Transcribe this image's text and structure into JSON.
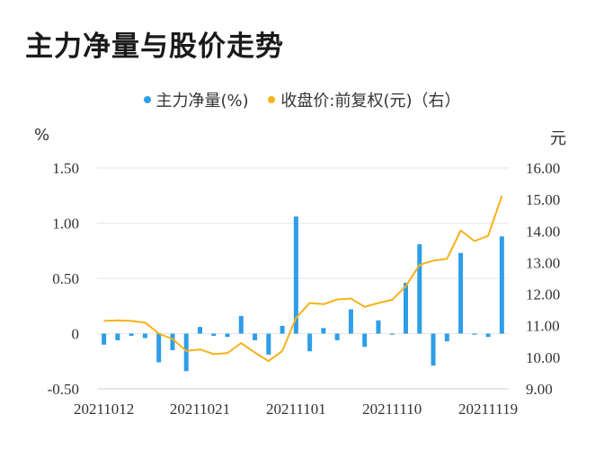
{
  "title": "主力净量与股价走势",
  "chart_data": {
    "type": "bar+line",
    "legend_position": "top",
    "grid": true,
    "left_unit": "%",
    "right_unit": "元",
    "y_left": {
      "min": -0.5,
      "max": 1.5,
      "ticks": [
        "-0.50",
        "0",
        "0.50",
        "1.00",
        "1.50"
      ]
    },
    "y_right": {
      "min": 9.0,
      "max": 16.0,
      "ticks": [
        "9.00",
        "10.00",
        "11.00",
        "12.00",
        "13.00",
        "14.00",
        "15.00",
        "16.00"
      ]
    },
    "x_tick_labels": [
      {
        "index": 0,
        "label": "20211012"
      },
      {
        "index": 7,
        "label": "20211021"
      },
      {
        "index": 14,
        "label": "20211101"
      },
      {
        "index": 21,
        "label": "20211110"
      },
      {
        "index": 28,
        "label": "20211119"
      }
    ],
    "series": [
      {
        "name": "主力净量(%)",
        "type": "bar",
        "color": "#2e9ee8",
        "values": [
          -0.1,
          -0.06,
          -0.02,
          -0.04,
          -0.26,
          -0.15,
          -0.34,
          0.06,
          -0.02,
          -0.03,
          0.16,
          -0.06,
          -0.19,
          0.07,
          1.06,
          -0.16,
          0.05,
          -0.06,
          0.22,
          -0.12,
          0.12,
          -0.01,
          0.46,
          0.81,
          -0.29,
          -0.07,
          0.73,
          -0.01,
          -0.03,
          0.88
        ]
      },
      {
        "name": "收盘价:前复权(元)（右）",
        "type": "line",
        "color": "#f5b21b",
        "values": [
          11.15,
          11.17,
          11.15,
          11.1,
          10.75,
          10.58,
          10.2,
          10.25,
          10.1,
          10.13,
          10.45,
          10.15,
          9.88,
          10.2,
          11.25,
          11.72,
          11.68,
          11.83,
          11.86,
          11.6,
          11.72,
          11.82,
          12.25,
          12.93,
          13.06,
          13.12,
          14.02,
          13.68,
          13.85,
          15.12
        ]
      }
    ]
  }
}
